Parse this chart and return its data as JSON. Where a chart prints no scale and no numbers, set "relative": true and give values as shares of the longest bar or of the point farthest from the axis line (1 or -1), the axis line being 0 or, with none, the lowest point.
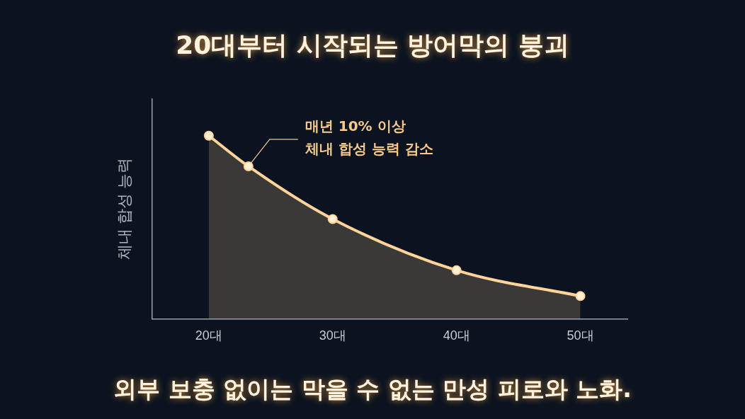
{
  "chart_data": {
    "type": "area",
    "title": "20대부터 시작되는 방어막의 붕괴",
    "ylabel": "체내 합성 능력",
    "relative": true,
    "x": [
      20,
      23.2,
      30,
      40,
      50
    ],
    "xlim": [
      15.4,
      53.8
    ],
    "xticks": [
      {
        "value": 20,
        "label": "20대"
      },
      {
        "value": 30,
        "label": "30대"
      },
      {
        "value": 40,
        "label": "40대"
      },
      {
        "value": 50,
        "label": "50대"
      }
    ],
    "series": [
      {
        "color": "#ffd49a",
        "values": [
          1,
          0.833,
          0.545,
          0.265,
          0.124
        ]
      }
    ],
    "marker": "circle",
    "grid": false,
    "legend": false,
    "annotations": [
      {
        "text": "매년 10% 이상\n체내 합성 능력 감소",
        "x": 23.2,
        "y": 0.833
      },
      "외부 보충 없이는 막을 수 없는 만성 피로와 노화."
    ]
  }
}
